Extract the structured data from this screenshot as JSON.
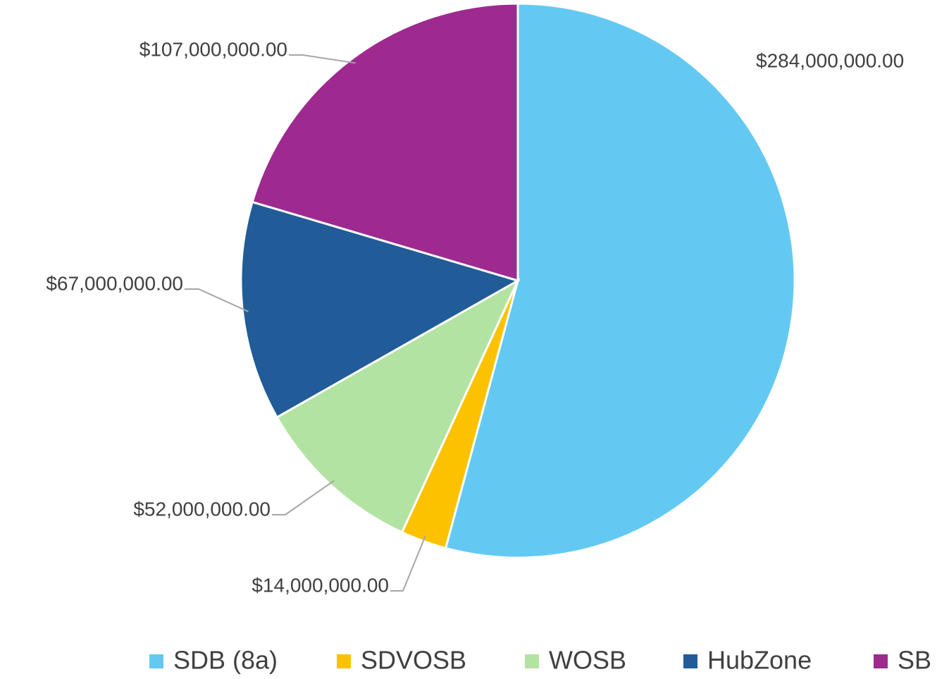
{
  "chart_data": {
    "type": "pie",
    "categories": [
      "SDB (8a)",
      "SDVOSB",
      "WOSB",
      "HubZone",
      "SB"
    ],
    "values": [
      284000000,
      14000000,
      52000000,
      67000000,
      107000000
    ],
    "value_labels": [
      "$284,000,000.00",
      "$14,000,000.00",
      "$52,000,000.00",
      "$67,000,000.00",
      "$107,000,000.00"
    ],
    "colors": [
      "#63c9f3",
      "#fcc200",
      "#b3e3a2",
      "#215c98",
      "#9e2a8f"
    ],
    "legend": "bottom"
  }
}
